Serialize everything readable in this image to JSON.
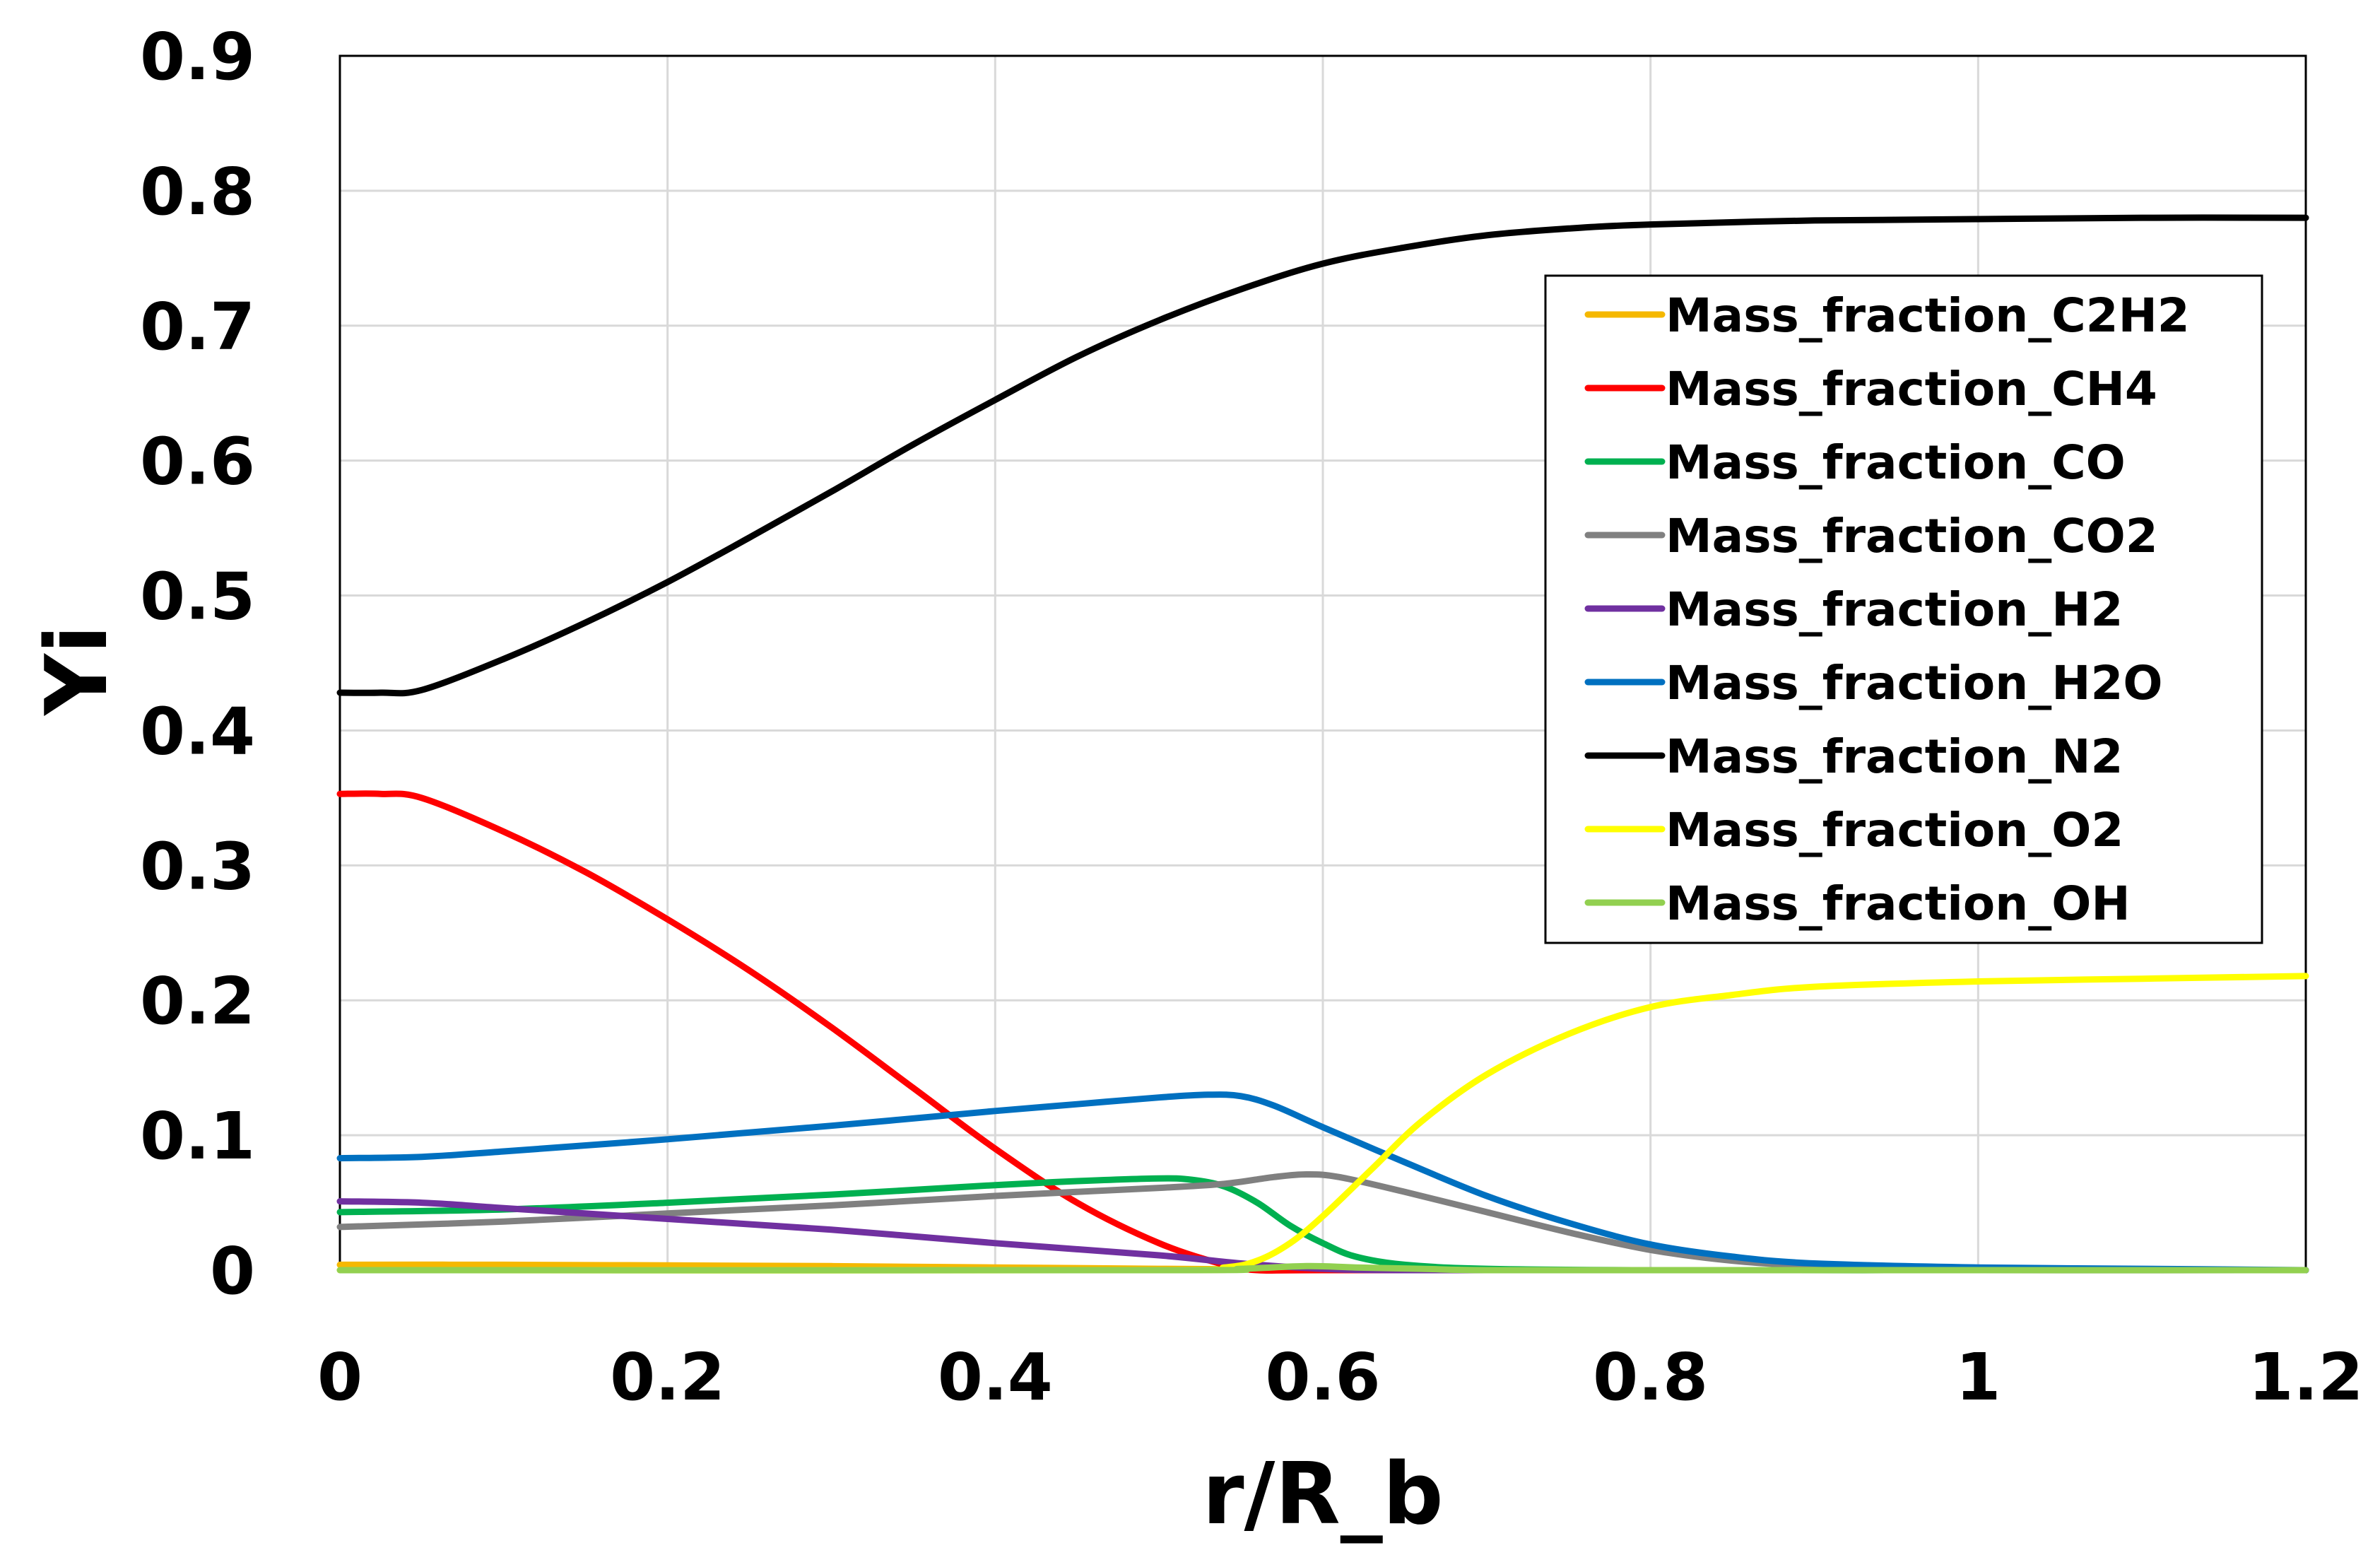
{
  "chart_data": {
    "type": "line",
    "title": "",
    "xlabel": "r/R_b",
    "ylabel": "Yi",
    "xlim": [
      0,
      1.2
    ],
    "ylim": [
      0,
      0.9
    ],
    "grid": true,
    "legend_position": "top-right",
    "x_ticks": [
      0,
      0.2,
      0.4,
      0.6,
      0.8,
      1,
      1.2
    ],
    "x_tick_labels": [
      "0",
      "0.2",
      "0.4",
      "0.6",
      "0.8",
      "1",
      "1.2"
    ],
    "y_ticks": [
      0,
      0.1,
      0.2,
      0.3,
      0.4,
      0.5,
      0.6,
      0.7,
      0.8,
      0.9
    ],
    "y_tick_labels": [
      "0",
      "0.1",
      "0.2",
      "0.3",
      "0.4",
      "0.5",
      "0.6",
      "0.7",
      "0.8",
      "0.9"
    ],
    "series": [
      {
        "name": "Mass_fraction_C2H2",
        "color": "#F5B800",
        "points": [
          [
            0,
            0.004
          ],
          [
            0.1,
            0.004
          ],
          [
            0.2,
            0.0035
          ],
          [
            0.3,
            0.003
          ],
          [
            0.4,
            0.002
          ],
          [
            0.5,
            0.001
          ],
          [
            0.6,
            0.0002
          ],
          [
            0.7,
            0
          ],
          [
            0.8,
            0
          ],
          [
            1.0,
            0
          ],
          [
            1.2,
            0
          ]
        ]
      },
      {
        "name": "Mass_fraction_CH4",
        "color": "#FF0000",
        "points": [
          [
            0,
            0.353
          ],
          [
            0.025,
            0.353
          ],
          [
            0.05,
            0.35
          ],
          [
            0.1,
            0.325
          ],
          [
            0.15,
            0.295
          ],
          [
            0.2,
            0.26
          ],
          [
            0.25,
            0.222
          ],
          [
            0.3,
            0.18
          ],
          [
            0.35,
            0.135
          ],
          [
            0.4,
            0.09
          ],
          [
            0.45,
            0.05
          ],
          [
            0.5,
            0.02
          ],
          [
            0.54,
            0.004
          ],
          [
            0.56,
            0
          ],
          [
            0.6,
            0
          ],
          [
            0.8,
            0
          ],
          [
            1.0,
            0
          ],
          [
            1.2,
            0
          ]
        ]
      },
      {
        "name": "Mass_fraction_CO",
        "color": "#00B050",
        "points": [
          [
            0,
            0.043
          ],
          [
            0.1,
            0.045
          ],
          [
            0.2,
            0.05
          ],
          [
            0.3,
            0.056
          ],
          [
            0.4,
            0.063
          ],
          [
            0.45,
            0.066
          ],
          [
            0.5,
            0.068
          ],
          [
            0.52,
            0.067
          ],
          [
            0.54,
            0.062
          ],
          [
            0.56,
            0.05
          ],
          [
            0.58,
            0.033
          ],
          [
            0.6,
            0.02
          ],
          [
            0.62,
            0.01
          ],
          [
            0.65,
            0.004
          ],
          [
            0.7,
            0.001
          ],
          [
            0.8,
            0
          ],
          [
            1.0,
            0
          ],
          [
            1.2,
            0
          ]
        ]
      },
      {
        "name": "Mass_fraction_CO2",
        "color": "#808080",
        "points": [
          [
            0,
            0.032
          ],
          [
            0.1,
            0.036
          ],
          [
            0.2,
            0.042
          ],
          [
            0.3,
            0.048
          ],
          [
            0.4,
            0.055
          ],
          [
            0.5,
            0.061
          ],
          [
            0.54,
            0.064
          ],
          [
            0.57,
            0.069
          ],
          [
            0.59,
            0.071
          ],
          [
            0.61,
            0.069
          ],
          [
            0.65,
            0.058
          ],
          [
            0.7,
            0.043
          ],
          [
            0.75,
            0.028
          ],
          [
            0.8,
            0.015
          ],
          [
            0.85,
            0.007
          ],
          [
            0.9,
            0.003
          ],
          [
            0.95,
            0.001
          ],
          [
            1.0,
            0
          ],
          [
            1.2,
            0
          ]
        ]
      },
      {
        "name": "Mass_fraction_H2",
        "color": "#7030A0",
        "points": [
          [
            0,
            0.051
          ],
          [
            0.05,
            0.05
          ],
          [
            0.1,
            0.046
          ],
          [
            0.2,
            0.038
          ],
          [
            0.3,
            0.03
          ],
          [
            0.4,
            0.02
          ],
          [
            0.5,
            0.011
          ],
          [
            0.55,
            0.005
          ],
          [
            0.6,
            0.001
          ],
          [
            0.65,
            0
          ],
          [
            0.8,
            0
          ],
          [
            1.0,
            0
          ],
          [
            1.2,
            0
          ]
        ]
      },
      {
        "name": "Mass_fraction_H2O",
        "color": "#0070C0",
        "points": [
          [
            0,
            0.083
          ],
          [
            0.05,
            0.084
          ],
          [
            0.1,
            0.088
          ],
          [
            0.2,
            0.097
          ],
          [
            0.3,
            0.107
          ],
          [
            0.4,
            0.118
          ],
          [
            0.45,
            0.123
          ],
          [
            0.5,
            0.128
          ],
          [
            0.53,
            0.13
          ],
          [
            0.55,
            0.129
          ],
          [
            0.57,
            0.122
          ],
          [
            0.6,
            0.106
          ],
          [
            0.65,
            0.08
          ],
          [
            0.7,
            0.055
          ],
          [
            0.75,
            0.035
          ],
          [
            0.8,
            0.019
          ],
          [
            0.85,
            0.01
          ],
          [
            0.9,
            0.005
          ],
          [
            1.0,
            0.002
          ],
          [
            1.1,
            0.001
          ],
          [
            1.2,
            0
          ]
        ]
      },
      {
        "name": "Mass_fraction_N2",
        "color": "#000000",
        "points": [
          [
            0,
            0.428
          ],
          [
            0.025,
            0.428
          ],
          [
            0.05,
            0.43
          ],
          [
            0.1,
            0.453
          ],
          [
            0.15,
            0.48
          ],
          [
            0.2,
            0.51
          ],
          [
            0.25,
            0.543
          ],
          [
            0.3,
            0.577
          ],
          [
            0.35,
            0.612
          ],
          [
            0.4,
            0.645
          ],
          [
            0.45,
            0.677
          ],
          [
            0.5,
            0.704
          ],
          [
            0.55,
            0.727
          ],
          [
            0.6,
            0.746
          ],
          [
            0.65,
            0.758
          ],
          [
            0.7,
            0.767
          ],
          [
            0.75,
            0.772
          ],
          [
            0.8,
            0.775
          ],
          [
            0.9,
            0.778
          ],
          [
            1.0,
            0.779
          ],
          [
            1.1,
            0.78
          ],
          [
            1.2,
            0.78
          ]
        ]
      },
      {
        "name": "Mass_fraction_O2",
        "color": "#FFFF00",
        "points": [
          [
            0,
            0
          ],
          [
            0.5,
            0
          ],
          [
            0.54,
            0.002
          ],
          [
            0.56,
            0.007
          ],
          [
            0.58,
            0.02
          ],
          [
            0.6,
            0.04
          ],
          [
            0.63,
            0.075
          ],
          [
            0.66,
            0.11
          ],
          [
            0.7,
            0.145
          ],
          [
            0.75,
            0.175
          ],
          [
            0.8,
            0.195
          ],
          [
            0.85,
            0.204
          ],
          [
            0.9,
            0.21
          ],
          [
            1.0,
            0.214
          ],
          [
            1.1,
            0.216
          ],
          [
            1.2,
            0.218
          ]
        ]
      },
      {
        "name": "Mass_fraction_OH",
        "color": "#92D050",
        "points": [
          [
            0,
            0
          ],
          [
            0.5,
            0
          ],
          [
            0.55,
            0.001
          ],
          [
            0.59,
            0.003
          ],
          [
            0.62,
            0.002
          ],
          [
            0.66,
            0.001
          ],
          [
            0.7,
            0
          ],
          [
            0.8,
            0
          ],
          [
            1.0,
            0
          ],
          [
            1.2,
            0
          ]
        ]
      }
    ]
  }
}
